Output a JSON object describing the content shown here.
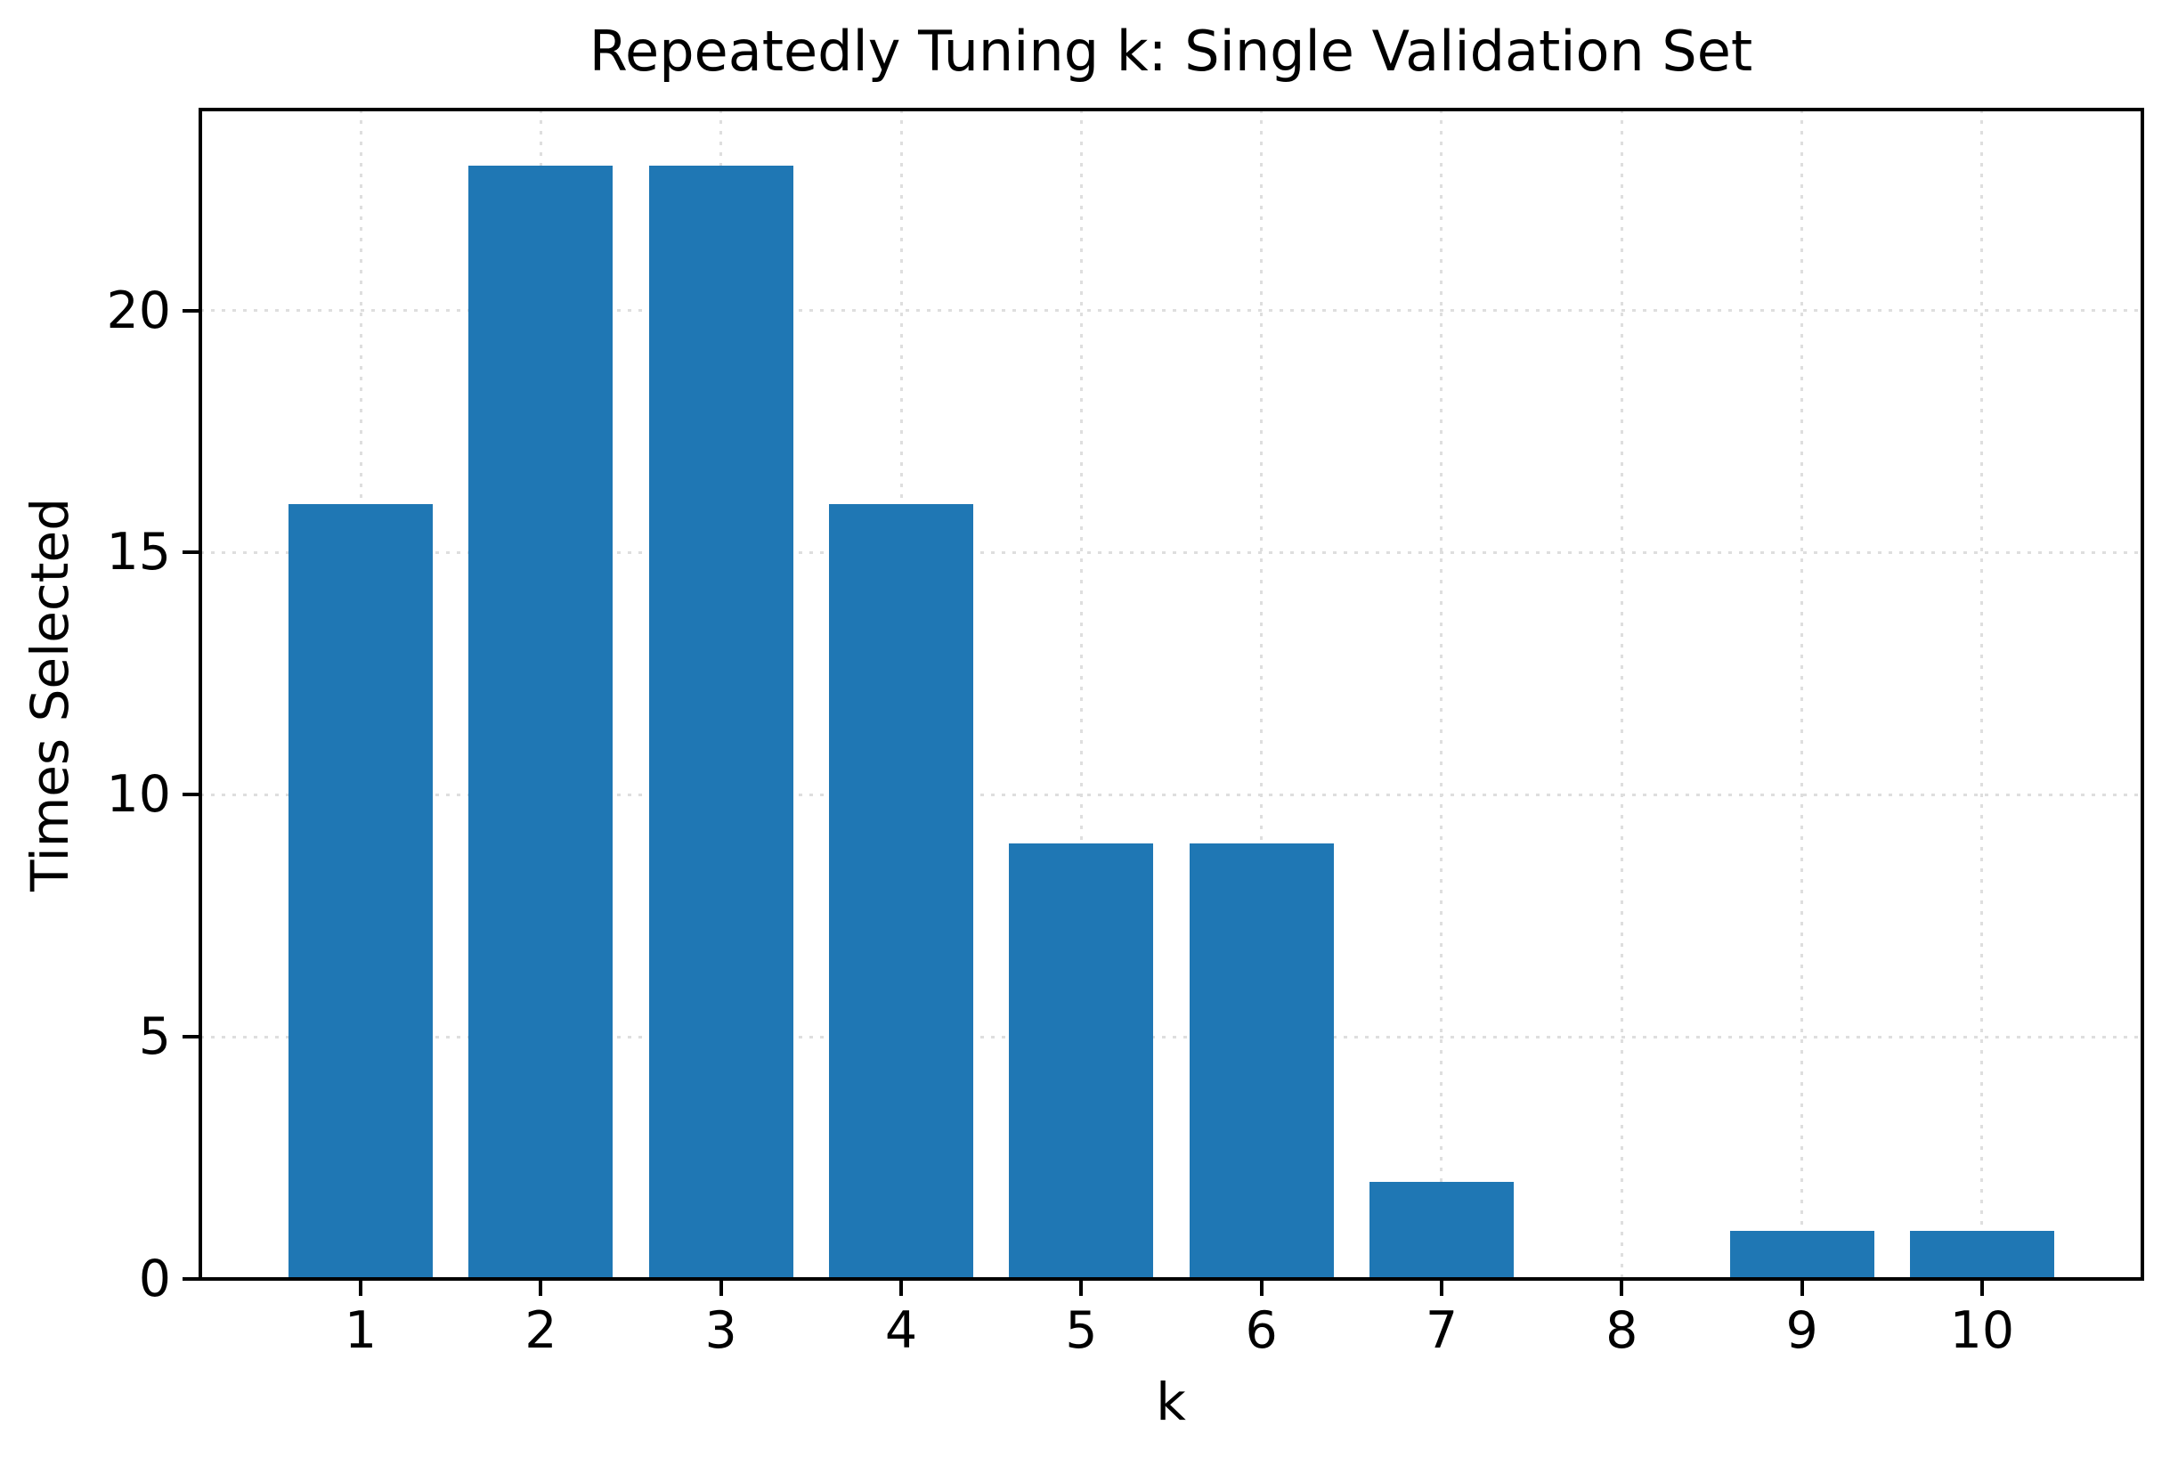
{
  "chart_data": {
    "type": "bar",
    "title": "Repeatedly Tuning k: Single Validation Set",
    "xlabel": "k",
    "ylabel": "Times Selected",
    "categories": [
      "1",
      "2",
      "3",
      "4",
      "5",
      "6",
      "7",
      "8",
      "9",
      "10"
    ],
    "x_values": [
      1,
      2,
      3,
      4,
      5,
      6,
      7,
      8,
      9,
      10
    ],
    "values": [
      16,
      23,
      23,
      16,
      9,
      9,
      2,
      0,
      1,
      1
    ],
    "yticks": [
      0,
      5,
      10,
      15,
      20
    ],
    "ylim": [
      0,
      24.15
    ],
    "xlim": [
      0.11,
      10.89
    ],
    "bar_width": 0.8,
    "bar_color": "#1f77b4",
    "grid": true,
    "grid_style": "dotted",
    "grid_color": "#dedede",
    "axis_color": "#000000",
    "text_color": "#000000",
    "background_color": "#ffffff",
    "legend": "none"
  }
}
